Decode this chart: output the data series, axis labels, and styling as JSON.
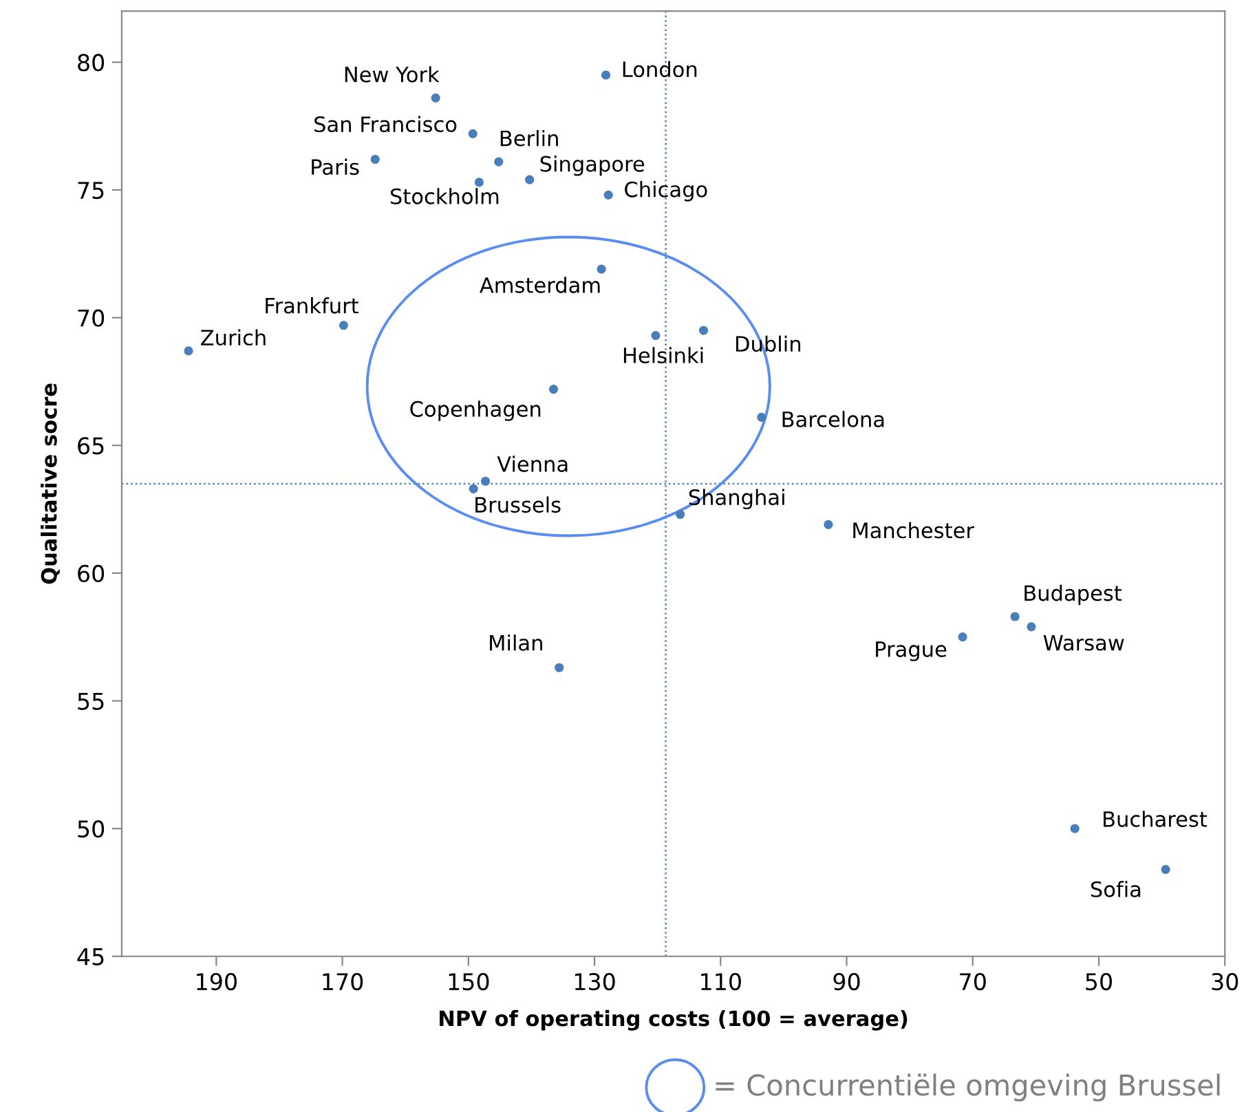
{
  "chart_data": {
    "type": "scatter",
    "xlabel": "NPV of operating costs (100 = average)",
    "ylabel": "Qualitative socre",
    "xlim": [
      205,
      30
    ],
    "xticks": [
      190,
      170,
      150,
      130,
      110,
      90,
      70,
      50,
      30
    ],
    "ylim": [
      45,
      82
    ],
    "yticks": [
      45,
      50,
      55,
      60,
      65,
      70,
      75,
      80
    ],
    "grid": false,
    "marker": "circle",
    "series": [
      {
        "name": "New York",
        "color": "#4a7ebb",
        "x": [
          155.2
        ],
        "values": [
          78.6
        ]
      },
      {
        "name": "London",
        "color": "#4a7ebb",
        "x": [
          128.2
        ],
        "values": [
          79.5
        ]
      },
      {
        "name": "San Francisco",
        "color": "#4a7ebb",
        "x": [
          149.3
        ],
        "values": [
          77.2
        ]
      },
      {
        "name": "Berlin",
        "color": "#4a7ebb",
        "x": [
          145.2
        ],
        "values": [
          76.1
        ]
      },
      {
        "name": "Paris",
        "color": "#4a7ebb",
        "x": [
          164.8
        ],
        "values": [
          76.2
        ]
      },
      {
        "name": "Stockholm",
        "color": "#4a7ebb",
        "x": [
          148.3
        ],
        "values": [
          75.3
        ]
      },
      {
        "name": "Singapore",
        "color": "#4a7ebb",
        "x": [
          140.3
        ],
        "values": [
          75.4
        ]
      },
      {
        "name": "Chicago",
        "color": "#4a7ebb",
        "x": [
          127.8
        ],
        "values": [
          74.8
        ]
      },
      {
        "name": "Amsterdam",
        "color": "#4a7ebb",
        "x": [
          128.9
        ],
        "values": [
          71.9
        ]
      },
      {
        "name": "Frankfurt",
        "color": "#4a7ebb",
        "x": [
          169.8
        ],
        "values": [
          69.7
        ]
      },
      {
        "name": "Zurich",
        "color": "#4a7ebb",
        "x": [
          194.4
        ],
        "values": [
          68.7
        ]
      },
      {
        "name": "Helsinki",
        "color": "#4a7ebb",
        "x": [
          120.3
        ],
        "values": [
          69.3
        ]
      },
      {
        "name": "Dublin",
        "color": "#4a7ebb",
        "x": [
          112.7
        ],
        "values": [
          69.5
        ]
      },
      {
        "name": "Copenhagen",
        "color": "#4a7ebb",
        "x": [
          136.5
        ],
        "values": [
          67.2
        ]
      },
      {
        "name": "Barcelona",
        "color": "#4a7ebb",
        "x": [
          103.5
        ],
        "values": [
          66.1
        ]
      },
      {
        "name": "Vienna",
        "color": "#4a7ebb",
        "x": [
          147.3
        ],
        "values": [
          63.6
        ]
      },
      {
        "name": "Brussels",
        "color": "#4a7ebb",
        "x": [
          149.2
        ],
        "values": [
          63.3
        ]
      },
      {
        "name": "Shanghai",
        "color": "#4a7ebb",
        "x": [
          116.4
        ],
        "values": [
          62.3
        ]
      },
      {
        "name": "Manchester",
        "color": "#4a7ebb",
        "x": [
          92.9
        ],
        "values": [
          61.9
        ]
      },
      {
        "name": "Budapest",
        "color": "#4a7ebb",
        "x": [
          63.3
        ],
        "values": [
          58.3
        ]
      },
      {
        "name": "Warsaw",
        "color": "#4a7ebb",
        "x": [
          60.7
        ],
        "values": [
          57.9
        ]
      },
      {
        "name": "Prague",
        "color": "#4a7ebb",
        "x": [
          71.6
        ],
        "values": [
          57.5
        ]
      },
      {
        "name": "Milan",
        "color": "#4a7ebb",
        "x": [
          135.6
        ],
        "values": [
          56.3
        ]
      },
      {
        "name": "Bucharest",
        "color": "#4a7ebb",
        "x": [
          53.8
        ],
        "values": [
          50.0
        ]
      },
      {
        "name": "Sofia",
        "color": "#4a7ebb",
        "x": [
          39.4
        ],
        "values": [
          48.4
        ]
      }
    ],
    "ref_lines": [
      {
        "axis": "x",
        "value": 118.7,
        "color": "#4a7ebb",
        "line_style": "dotted"
      },
      {
        "axis": "y",
        "value": 63.5,
        "color": "#4a7ebb",
        "line_style": "dotted"
      }
    ],
    "annotations": [
      "= Concurrentiële omgeving Brussel"
    ]
  }
}
